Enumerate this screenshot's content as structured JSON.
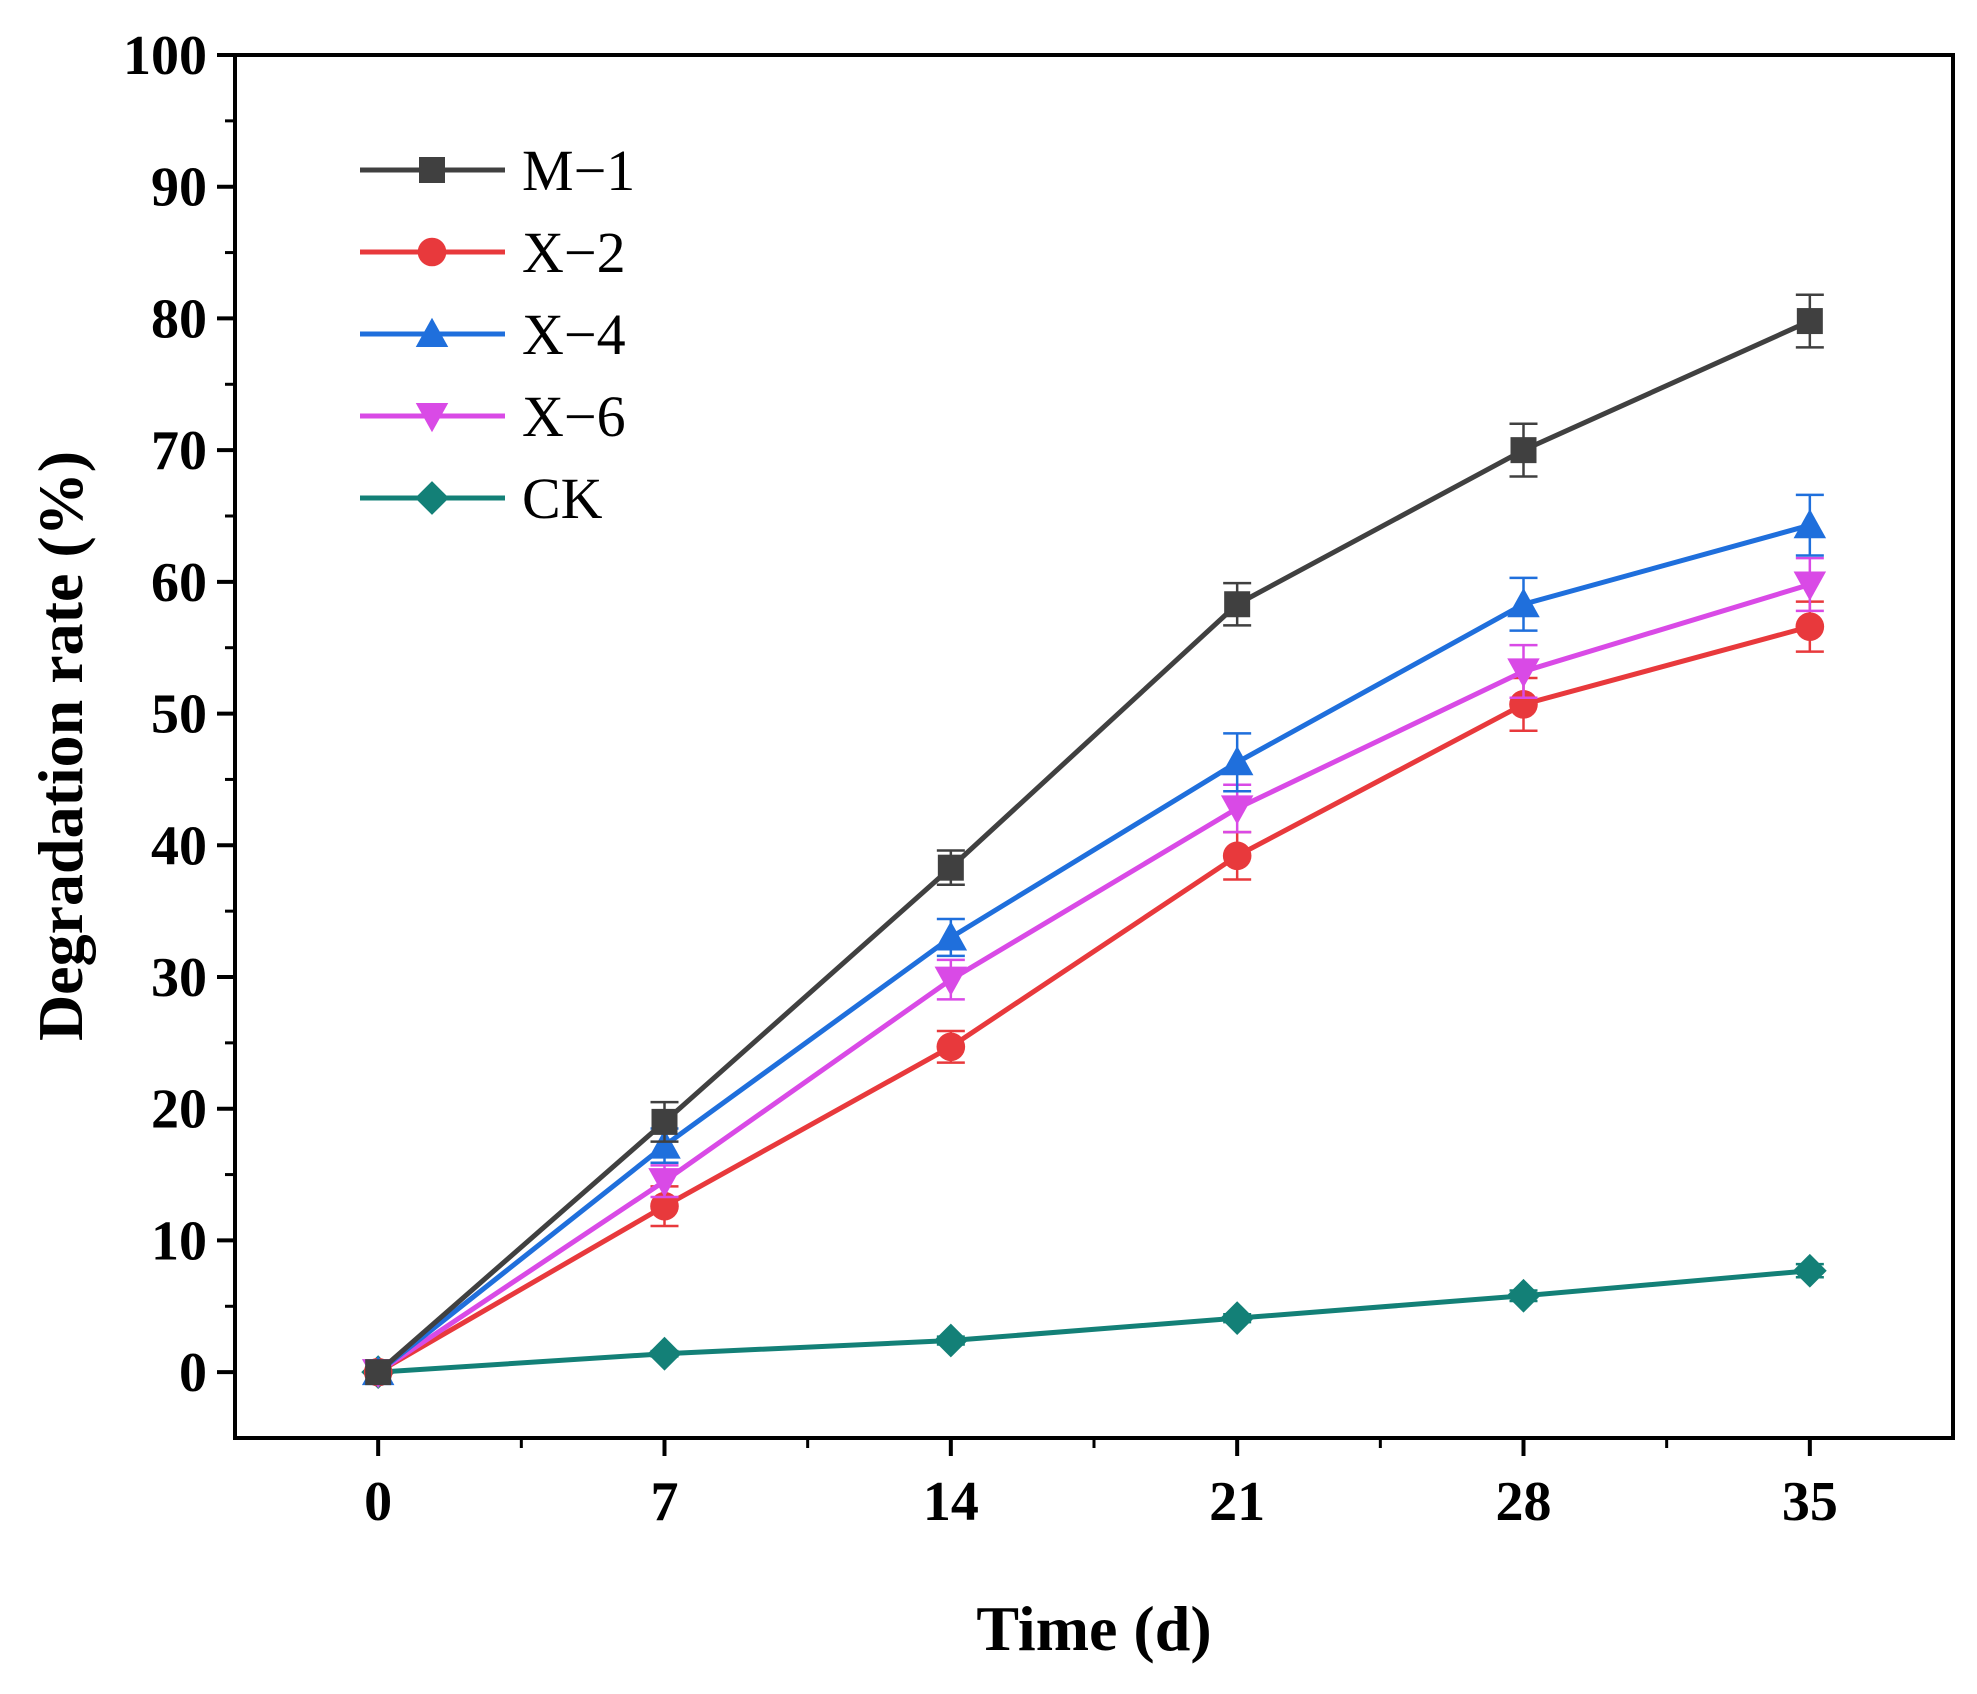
{
  "chart_data": {
    "type": "line",
    "title": "",
    "xlabel": "Time (d)",
    "ylabel": "Degradation rate (%)",
    "x": [
      0,
      7,
      14,
      21,
      28,
      35
    ],
    "x_tick_labels": [
      "0",
      "7",
      "14",
      "21",
      "28",
      "35"
    ],
    "y_tick_labels": [
      "0",
      "10",
      "20",
      "30",
      "40",
      "50",
      "60",
      "70",
      "80",
      "90",
      "100"
    ],
    "y_ticks": [
      0,
      10,
      20,
      30,
      40,
      50,
      60,
      70,
      80,
      90,
      100
    ],
    "xlim": [
      -3.5,
      38.5
    ],
    "ylim": [
      -5,
      100
    ],
    "grid": false,
    "legend_position": "top-left",
    "series": [
      {
        "name": "M−1",
        "color": "#404040",
        "marker": "square",
        "values": [
          0,
          19.0,
          38.3,
          58.3,
          70.0,
          79.8
        ],
        "errors": [
          0,
          1.5,
          1.3,
          1.6,
          2.0,
          2.0
        ]
      },
      {
        "name": "X−2",
        "color": "#e8393c",
        "marker": "circle",
        "values": [
          0,
          12.6,
          24.7,
          39.2,
          50.7,
          56.6
        ],
        "errors": [
          0,
          1.5,
          1.2,
          1.8,
          2.0,
          1.9
        ]
      },
      {
        "name": "X−4",
        "color": "#1f6fdc",
        "marker": "triangle-up",
        "values": [
          0,
          17.2,
          33.0,
          46.3,
          58.3,
          64.3
        ],
        "errors": [
          0,
          1.3,
          1.4,
          2.2,
          2.0,
          2.3
        ]
      },
      {
        "name": "X−6",
        "color": "#d94ae6",
        "marker": "triangle-down",
        "values": [
          0,
          14.5,
          29.8,
          42.8,
          53.2,
          59.8
        ],
        "errors": [
          0,
          1.2,
          1.5,
          1.8,
          2.0,
          2.0
        ]
      },
      {
        "name": "CK",
        "color": "#138077",
        "marker": "diamond",
        "values": [
          0,
          1.4,
          2.4,
          4.1,
          5.8,
          7.7
        ],
        "errors": [
          0,
          0.2,
          0.3,
          0.3,
          0.4,
          0.5
        ]
      }
    ]
  }
}
